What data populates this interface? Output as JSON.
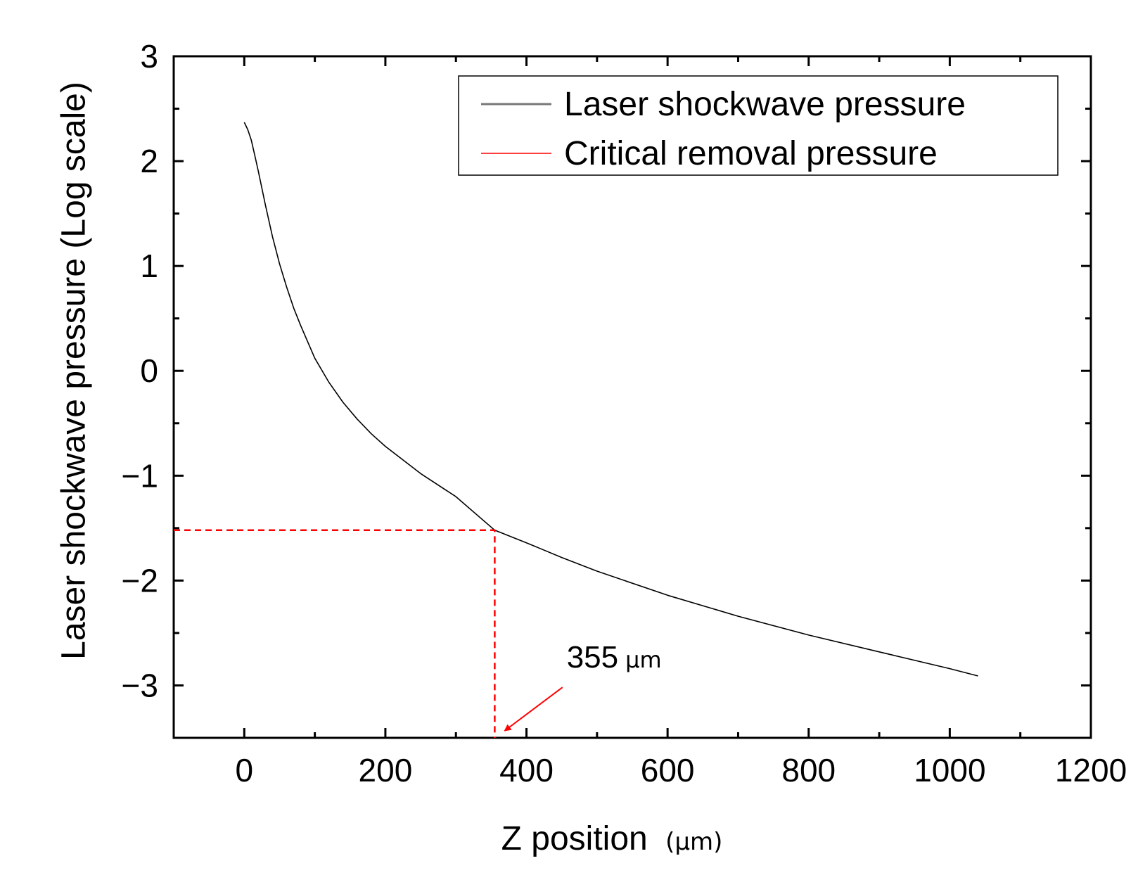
{
  "chart_data": {
    "type": "line",
    "xlabel_main": "Z position",
    "xlabel_unit": "(μm)",
    "ylabel": "Laser shockwave pressure (Log scale)",
    "xlim": [
      -100,
      1200
    ],
    "ylim": [
      -3.5,
      3
    ],
    "x_ticks": [
      0,
      200,
      400,
      600,
      800,
      1000,
      1200
    ],
    "x_tick_labels": [
      "0",
      "200",
      "400",
      "600",
      "800",
      "1000",
      "1200"
    ],
    "x_minor_ticks": [
      100,
      300,
      500,
      700,
      900,
      1100
    ],
    "y_ticks": [
      -3,
      -2,
      -1,
      0,
      1,
      2,
      3
    ],
    "y_tick_labels": [
      "−3",
      "−2",
      "−1",
      "0",
      "1",
      "2",
      "3"
    ],
    "y_minor_ticks": [
      -2.5,
      -1.5,
      -0.5,
      0.5,
      1.5,
      2.5
    ],
    "grid": false,
    "legend_position": "top-right",
    "series": [
      {
        "name": "Laser shockwave pressure",
        "color": "#000000",
        "style": "solid",
        "x": [
          0,
          5,
          10,
          15,
          20,
          30,
          40,
          50,
          60,
          70,
          80,
          100,
          120,
          140,
          160,
          180,
          200,
          250,
          300,
          355,
          400,
          450,
          500,
          600,
          700,
          800,
          900,
          1000,
          1040
        ],
        "y": [
          2.37,
          2.3,
          2.2,
          2.05,
          1.9,
          1.58,
          1.28,
          1.02,
          0.8,
          0.6,
          0.43,
          0.12,
          -0.11,
          -0.3,
          -0.46,
          -0.6,
          -0.72,
          -0.98,
          -1.2,
          -1.52,
          -1.64,
          -1.78,
          -1.91,
          -2.14,
          -2.34,
          -2.52,
          -2.68,
          -2.84,
          -2.91
        ]
      },
      {
        "name": "Critical removal pressure",
        "color": "#ff0000",
        "style": "dashed",
        "x": [
          -100,
          355,
          355
        ],
        "y": [
          -1.52,
          -1.52,
          -3.5
        ]
      }
    ],
    "annotations": [
      {
        "number": "355",
        "unit": "μm",
        "points_to": [
          355,
          -3.5
        ],
        "text_at": [
          455,
          -2.75
        ],
        "arrow_color": "#ff0000"
      }
    ]
  }
}
